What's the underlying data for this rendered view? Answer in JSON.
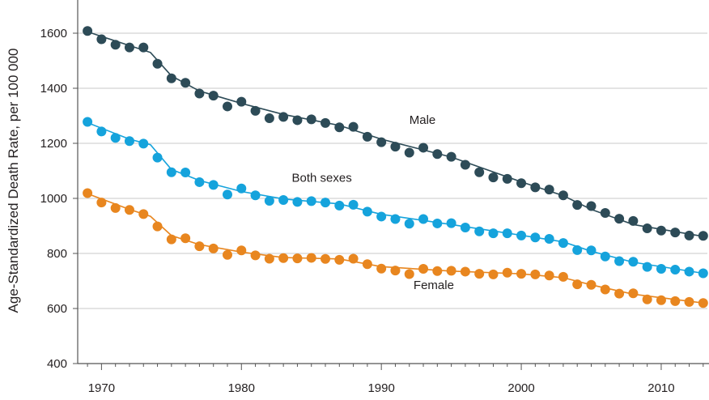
{
  "chart_data": {
    "type": "line",
    "title": "",
    "xlabel": "",
    "ylabel": "Age-Standardized Death Rate, per 100 000",
    "xlim": [
      1968.3,
      2013.3
    ],
    "ylim": [
      400,
      1700
    ],
    "x_ticks": [
      1970,
      1980,
      1990,
      2000,
      2010
    ],
    "y_ticks": [
      400,
      600,
      800,
      1000,
      1200,
      1400,
      1600
    ],
    "grid": "horizontal",
    "legend": "inline labels",
    "x": [
      1969,
      1970,
      1971,
      1972,
      1973,
      1974,
      1975,
      1976,
      1977,
      1978,
      1979,
      1980,
      1981,
      1982,
      1983,
      1984,
      1985,
      1986,
      1987,
      1988,
      1989,
      1990,
      1991,
      1992,
      1993,
      1994,
      1995,
      1996,
      1997,
      1998,
      1999,
      2000,
      2001,
      2002,
      2003,
      2004,
      2005,
      2006,
      2007,
      2008,
      2009,
      2010,
      2011,
      2012,
      2013
    ],
    "series": [
      {
        "name": "Male",
        "color": "#2d4b57",
        "values": [
          1608,
          1578,
          1558,
          1548,
          1548,
          1489,
          1436,
          1420,
          1381,
          1373,
          1334,
          1351,
          1318,
          1291,
          1296,
          1284,
          1287,
          1274,
          1258,
          1260,
          1224,
          1204,
          1188,
          1166,
          1184,
          1161,
          1151,
          1122,
          1095,
          1076,
          1071,
          1055,
          1040,
          1032,
          1011,
          976,
          972,
          947,
          926,
          918,
          891,
          883,
          876,
          865,
          864
        ],
        "fit": [
          [
            1969,
            1605
          ],
          [
            1972,
            1555
          ],
          [
            1973.5,
            1530
          ],
          [
            1975,
            1445
          ],
          [
            1977,
            1390
          ],
          [
            1980,
            1345
          ],
          [
            1983,
            1305
          ],
          [
            1987,
            1265
          ],
          [
            1990,
            1215
          ],
          [
            1995,
            1150
          ],
          [
            2000,
            1060
          ],
          [
            2003,
            1010
          ],
          [
            2005,
            960
          ],
          [
            2008,
            905
          ],
          [
            2013,
            862
          ]
        ]
      },
      {
        "name": "Both sexes",
        "color": "#15a3dc",
        "values": [
          1278,
          1243,
          1220,
          1208,
          1199,
          1148,
          1095,
          1094,
          1059,
          1049,
          1014,
          1036,
          1011,
          991,
          994,
          987,
          990,
          985,
          974,
          977,
          952,
          934,
          925,
          908,
          925,
          909,
          910,
          894,
          880,
          873,
          873,
          865,
          858,
          853,
          838,
          812,
          811,
          789,
          772,
          770,
          751,
          744,
          741,
          734,
          728
        ],
        "fit": [
          [
            1969,
            1275
          ],
          [
            1972,
            1215
          ],
          [
            1973.5,
            1195
          ],
          [
            1975,
            1105
          ],
          [
            1977,
            1065
          ],
          [
            1980,
            1025
          ],
          [
            1983,
            998
          ],
          [
            1987,
            980
          ],
          [
            1990,
            942
          ],
          [
            1995,
            905
          ],
          [
            2000,
            866
          ],
          [
            2003,
            842
          ],
          [
            2005,
            808
          ],
          [
            2008,
            768
          ],
          [
            2013,
            728
          ]
        ]
      },
      {
        "name": "Female",
        "color": "#e8861f",
        "values": [
          1019,
          985,
          965,
          958,
          943,
          898,
          851,
          855,
          826,
          818,
          795,
          811,
          793,
          781,
          783,
          782,
          784,
          780,
          777,
          781,
          761,
          745,
          738,
          725,
          744,
          736,
          737,
          734,
          726,
          724,
          730,
          726,
          724,
          720,
          715,
          688,
          686,
          669,
          654,
          655,
          633,
          630,
          627,
          624,
          620
        ],
        "fit": [
          [
            1969,
            1017
          ],
          [
            1972,
            960
          ],
          [
            1973.5,
            935
          ],
          [
            1975,
            865
          ],
          [
            1977,
            832
          ],
          [
            1980,
            805
          ],
          [
            1983,
            785
          ],
          [
            1987,
            780
          ],
          [
            1990,
            752
          ],
          [
            1995,
            736
          ],
          [
            2000,
            726
          ],
          [
            2003,
            712
          ],
          [
            2005,
            686
          ],
          [
            2008,
            652
          ],
          [
            2013,
            620
          ]
        ]
      }
    ],
    "annotations": [
      {
        "text": "Male",
        "x": 1992.0,
        "y": 1270
      },
      {
        "text": "Both sexes",
        "x": 1983.6,
        "y": 1060
      },
      {
        "text": "Female",
        "x": 1992.3,
        "y": 670
      }
    ]
  }
}
